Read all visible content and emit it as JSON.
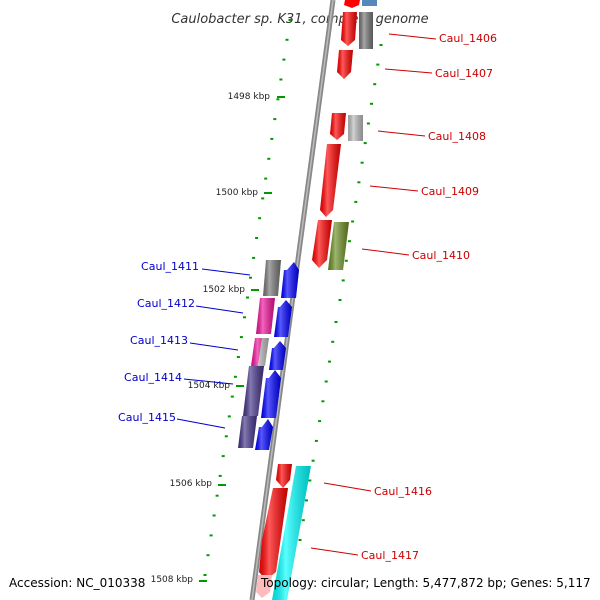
{
  "title": "Caulobacter sp. K31, complete genome",
  "footer": {
    "accession": "Accession: NC_010338",
    "topology": "Topology: circular; Length: 5,477,872 bp; Genes: 5,117"
  },
  "kbp_marks": [
    "1498 kbp",
    "1500 kbp",
    "1502 kbp",
    "1504 kbp",
    "1506 kbp",
    "1508 kbp"
  ],
  "genes_plus": [
    {
      "name": "Caul_1406",
      "color": "#ff0000"
    },
    {
      "name": "Caul_1407",
      "color": "#ff0000"
    },
    {
      "name": "Caul_1408",
      "color": "#ff0000"
    },
    {
      "name": "Caul_1409",
      "color": "#ff0000"
    },
    {
      "name": "Caul_1410",
      "color": "#ff0000"
    },
    {
      "name": "Caul_1416",
      "color": "#ff0000"
    },
    {
      "name": "Caul_1417",
      "color": "#ff0000"
    }
  ],
  "genes_minus": [
    {
      "name": "Caul_1411",
      "color": "#0000ff"
    },
    {
      "name": "Caul_1412",
      "color": "#0000ff"
    },
    {
      "name": "Caul_1413",
      "color": "#0000ff"
    },
    {
      "name": "Caul_1414",
      "color": "#0000ff"
    },
    {
      "name": "Caul_1415",
      "color": "#0000ff"
    }
  ],
  "colors": {
    "plus_label": "#cc0000",
    "minus_label": "#0000cc",
    "tick": "#009900",
    "backbone": "#888888",
    "cog_gray": "#777777",
    "cog_light_gray": "#bbbbbb",
    "cog_olive": "#6b8e23",
    "cog_magenta": "#ee1199",
    "cog_pink": "#ff77aa",
    "cog_navy": "#443388",
    "cog_cyan": "#00ffff",
    "cog_steel": "#5588bb"
  }
}
